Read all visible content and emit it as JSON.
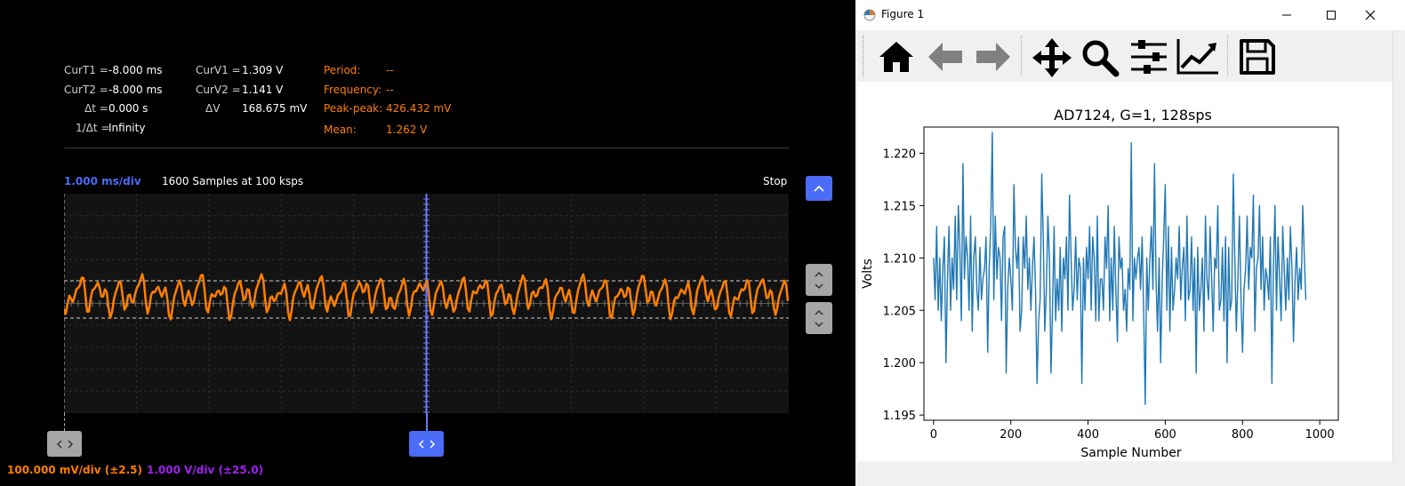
{
  "scope": {
    "cursors": {
      "curt1_label": "CurT1 =",
      "curt1_value": "-8.000 ms",
      "curt2_label": "CurT2 =",
      "curt2_value": "-8.000 ms",
      "dt_label": "Δt =",
      "dt_value": "0.000 s",
      "inv_dt_label": "1/Δt =",
      "inv_dt_value": "Infinity",
      "curv1_label": "CurV1 =",
      "curv1_value": "1.309 V",
      "curv2_label": "CurV2 =",
      "curv2_value": "1.141 V",
      "dv_label": "ΔV",
      "dv_value": "168.675 mV"
    },
    "measurements": {
      "period_label": "Period:",
      "period_value": "--",
      "frequency_label": "Frequency:",
      "frequency_value": "--",
      "peakpeak_label": "Peak-peak:",
      "peakpeak_value": "426.432 mV",
      "mean_label": "Mean:",
      "mean_value": "1.262 V"
    },
    "timebase": "1.000 ms/div",
    "samples": "1600 Samples at 100 ksps",
    "run_state": "Stop",
    "ch1_scale": "100.000 mV/div (±2.5)",
    "ch2_scale": "1.000 V/div (±25.0)",
    "colors": {
      "trace": "#ff7f00",
      "accent": "#4a6cf7",
      "ch2": "#a020f0"
    }
  },
  "figure": {
    "window_title": "Figure 1",
    "toolbar_icons": [
      "home-icon",
      "back-arrow-icon",
      "forward-arrow-icon",
      "move-icon",
      "zoom-icon",
      "subplots-icon",
      "axes-edit-icon",
      "save-icon"
    ]
  },
  "chart_data": {
    "type": "line",
    "title": "AD7124, G=1, 128sps",
    "xlabel": "Sample Number",
    "ylabel": "Volts",
    "xlim": [
      -25,
      1048
    ],
    "ylim": [
      1.1945,
      1.2225
    ],
    "xticks": [
      "0",
      "200",
      "400",
      "600",
      "800",
      "1000"
    ],
    "yticks": [
      "1.195",
      "1.200",
      "1.205",
      "1.210",
      "1.215",
      "1.220"
    ],
    "color": "#1f77b4",
    "x_start": 0,
    "x_step": 4,
    "values": [
      1.21,
      1.206,
      1.213,
      1.205,
      1.21,
      1.204,
      1.209,
      1.212,
      1.2,
      1.208,
      1.213,
      1.205,
      1.21,
      1.207,
      1.214,
      1.206,
      1.215,
      1.211,
      1.204,
      1.219,
      1.208,
      1.212,
      1.21,
      1.205,
      1.214,
      1.203,
      1.21,
      1.212,
      1.207,
      1.205,
      1.211,
      1.206,
      1.208,
      1.209,
      1.212,
      1.201,
      1.209,
      1.213,
      1.222,
      1.206,
      1.214,
      1.208,
      1.211,
      1.21,
      1.204,
      1.212,
      1.213,
      1.199,
      1.207,
      1.21,
      1.208,
      1.205,
      1.217,
      1.211,
      1.209,
      1.212,
      1.203,
      1.205,
      1.212,
      1.209,
      1.214,
      1.207,
      1.21,
      1.205,
      1.209,
      1.212,
      1.207,
      1.198,
      1.204,
      1.206,
      1.218,
      1.212,
      1.203,
      1.207,
      1.214,
      1.21,
      1.199,
      1.205,
      1.213,
      1.204,
      1.208,
      1.205,
      1.211,
      1.203,
      1.21,
      1.208,
      1.212,
      1.205,
      1.216,
      1.21,
      1.205,
      1.207,
      1.212,
      1.206,
      1.21,
      1.209,
      1.198,
      1.21,
      1.205,
      1.211,
      1.208,
      1.213,
      1.205,
      1.212,
      1.21,
      1.204,
      1.214,
      1.204,
      1.208,
      1.208,
      1.205,
      1.212,
      1.209,
      1.215,
      1.204,
      1.21,
      1.205,
      1.213,
      1.207,
      1.202,
      1.212,
      1.209,
      1.21,
      1.205,
      1.207,
      1.203,
      1.209,
      1.207,
      1.221,
      1.204,
      1.21,
      1.208,
      1.21,
      1.211,
      1.207,
      1.212,
      1.205,
      1.196,
      1.21,
      1.205,
      1.21,
      1.213,
      1.207,
      1.219,
      1.208,
      1.203,
      1.21,
      1.2,
      1.208,
      1.212,
      1.217,
      1.205,
      1.213,
      1.203,
      1.211,
      1.205,
      1.207,
      1.21,
      1.208,
      1.213,
      1.206,
      1.209,
      1.211,
      1.204,
      1.214,
      1.206,
      1.207,
      1.212,
      1.205,
      1.21,
      1.199,
      1.211,
      1.205,
      1.207,
      1.21,
      1.203,
      1.214,
      1.208,
      1.206,
      1.213,
      1.208,
      1.203,
      1.21,
      1.209,
      1.215,
      1.205,
      1.206,
      1.211,
      1.204,
      1.212,
      1.2,
      1.211,
      1.205,
      1.206,
      1.218,
      1.21,
      1.203,
      1.208,
      1.214,
      1.206,
      1.201,
      1.207,
      1.209,
      1.214,
      1.207,
      1.211,
      1.21,
      1.216,
      1.203,
      1.209,
      1.21,
      1.215,
      1.207,
      1.212,
      1.205,
      1.209,
      1.208,
      1.206,
      1.212,
      1.198,
      1.209,
      1.215,
      1.205,
      1.212,
      1.208,
      1.204,
      1.213,
      1.209,
      1.205,
      1.21,
      1.206,
      1.213,
      1.209,
      1.202,
      1.208,
      1.211,
      1.206,
      1.209,
      1.207,
      1.215,
      1.21,
      1.206
    ]
  }
}
